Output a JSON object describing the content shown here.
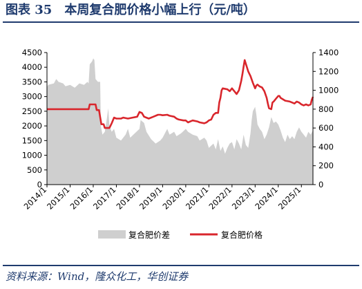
{
  "figure": {
    "title": "图表 35　本周复合肥价格小幅上行（元/吨）",
    "source": "资料来源：Wind，隆众化工，华创证券"
  },
  "chart_data": {
    "type": "area+line",
    "x_tick_labels": [
      "2014/1",
      "2015/1",
      "2016/1",
      "2017/1",
      "2018/1",
      "2019/1",
      "2020/1",
      "2021/1",
      "2022/1",
      "2023/1",
      "2024/1",
      "2025/1"
    ],
    "left_axis": {
      "ticks": [
        0,
        500,
        1000,
        1500,
        2000,
        2500,
        3000,
        3500,
        4000,
        4500
      ],
      "ylim": [
        0,
        4500
      ]
    },
    "right_axis": {
      "ticks": [
        0,
        200,
        400,
        600,
        800,
        1000,
        1200,
        1400
      ],
      "ylim": [
        0,
        1400
      ]
    },
    "xlim": [
      2014.0,
      2025.5
    ],
    "legend": {
      "position": "bottom",
      "entries": [
        "复合肥价差",
        "复合肥价格"
      ]
    },
    "series": [
      {
        "name": "复合肥价差",
        "axis": "left",
        "type": "area",
        "color": "#cfcfcf",
        "points": [
          [
            2014.0,
            3300
          ],
          [
            2014.05,
            3400
          ],
          [
            2014.3,
            3450
          ],
          [
            2014.4,
            3600
          ],
          [
            2014.5,
            3500
          ],
          [
            2014.7,
            3450
          ],
          [
            2014.8,
            3350
          ],
          [
            2015.0,
            3400
          ],
          [
            2015.2,
            3300
          ],
          [
            2015.4,
            3450
          ],
          [
            2015.6,
            3400
          ],
          [
            2015.75,
            3500
          ],
          [
            2015.8,
            3450
          ],
          [
            2015.85,
            4100
          ],
          [
            2015.95,
            4200
          ],
          [
            2016.0,
            4300
          ],
          [
            2016.05,
            4250
          ],
          [
            2016.1,
            3600
          ],
          [
            2016.2,
            3500
          ],
          [
            2016.3,
            3500
          ],
          [
            2016.33,
            2000
          ],
          [
            2016.4,
            1700
          ],
          [
            2016.5,
            1800
          ],
          [
            2016.6,
            2300
          ],
          [
            2016.65,
            2600
          ],
          [
            2016.7,
            2000
          ],
          [
            2016.8,
            1800
          ],
          [
            2016.9,
            1900
          ],
          [
            2017.0,
            1600
          ],
          [
            2017.2,
            1500
          ],
          [
            2017.4,
            1700
          ],
          [
            2017.5,
            1900
          ],
          [
            2017.6,
            1600
          ],
          [
            2017.8,
            1750
          ],
          [
            2018.0,
            1900
          ],
          [
            2018.05,
            2200
          ],
          [
            2018.2,
            2100
          ],
          [
            2018.3,
            1800
          ],
          [
            2018.5,
            1550
          ],
          [
            2018.7,
            1400
          ],
          [
            2018.9,
            1500
          ],
          [
            2019.0,
            1600
          ],
          [
            2019.2,
            1900
          ],
          [
            2019.3,
            1700
          ],
          [
            2019.5,
            1800
          ],
          [
            2019.6,
            1650
          ],
          [
            2019.8,
            1750
          ],
          [
            2020.0,
            1900
          ],
          [
            2020.1,
            1800
          ],
          [
            2020.3,
            1700
          ],
          [
            2020.5,
            1650
          ],
          [
            2020.6,
            1500
          ],
          [
            2020.8,
            1600
          ],
          [
            2020.9,
            1500
          ],
          [
            2021.0,
            1250
          ],
          [
            2021.2,
            1400
          ],
          [
            2021.3,
            1200
          ],
          [
            2021.4,
            1550
          ],
          [
            2021.5,
            1150
          ],
          [
            2021.6,
            1300
          ],
          [
            2021.7,
            1050
          ],
          [
            2021.8,
            1250
          ],
          [
            2021.9,
            1400
          ],
          [
            2022.0,
            1450
          ],
          [
            2022.1,
            1200
          ],
          [
            2022.2,
            1550
          ],
          [
            2022.3,
            1400
          ],
          [
            2022.4,
            1200
          ],
          [
            2022.5,
            1700
          ],
          [
            2022.6,
            1350
          ],
          [
            2022.7,
            1250
          ],
          [
            2022.8,
            1750
          ],
          [
            2022.85,
            2200
          ],
          [
            2022.9,
            2500
          ],
          [
            2023.0,
            2650
          ],
          [
            2023.05,
            2400
          ],
          [
            2023.1,
            2050
          ],
          [
            2023.2,
            1900
          ],
          [
            2023.3,
            1800
          ],
          [
            2023.4,
            1550
          ],
          [
            2023.5,
            1700
          ],
          [
            2023.6,
            1950
          ],
          [
            2023.7,
            2300
          ],
          [
            2023.8,
            2100
          ],
          [
            2023.9,
            2150
          ],
          [
            2024.0,
            2050
          ],
          [
            2024.1,
            1850
          ],
          [
            2024.2,
            1600
          ],
          [
            2024.3,
            1450
          ],
          [
            2024.4,
            1700
          ],
          [
            2024.5,
            1550
          ],
          [
            2024.6,
            1650
          ],
          [
            2024.7,
            1550
          ],
          [
            2024.8,
            1800
          ],
          [
            2024.9,
            1950
          ],
          [
            2025.0,
            1800
          ],
          [
            2025.1,
            1700
          ],
          [
            2025.2,
            1600
          ],
          [
            2025.3,
            1800
          ],
          [
            2025.4,
            1700
          ],
          [
            2025.5,
            1850
          ]
        ]
      },
      {
        "name": "复合肥价格",
        "axis": "right",
        "type": "line",
        "color": "#d9262c",
        "points": [
          [
            2014.0,
            800
          ],
          [
            2015.8,
            800
          ],
          [
            2015.85,
            850
          ],
          [
            2016.1,
            850
          ],
          [
            2016.15,
            790
          ],
          [
            2016.25,
            790
          ],
          [
            2016.35,
            640
          ],
          [
            2016.45,
            640
          ],
          [
            2016.5,
            600
          ],
          [
            2016.7,
            600
          ],
          [
            2016.8,
            650
          ],
          [
            2016.9,
            710
          ],
          [
            2017.0,
            700
          ],
          [
            2017.2,
            700
          ],
          [
            2017.3,
            710
          ],
          [
            2017.5,
            700
          ],
          [
            2017.7,
            710
          ],
          [
            2017.9,
            720
          ],
          [
            2018.0,
            770
          ],
          [
            2018.1,
            760
          ],
          [
            2018.2,
            720
          ],
          [
            2018.4,
            700
          ],
          [
            2018.6,
            720
          ],
          [
            2018.8,
            740
          ],
          [
            2018.9,
            740
          ],
          [
            2019.0,
            735
          ],
          [
            2019.2,
            740
          ],
          [
            2019.3,
            730
          ],
          [
            2019.5,
            720
          ],
          [
            2019.6,
            700
          ],
          [
            2019.7,
            690
          ],
          [
            2019.9,
            680
          ],
          [
            2020.0,
            680
          ],
          [
            2020.1,
            660
          ],
          [
            2020.3,
            680
          ],
          [
            2020.5,
            670
          ],
          [
            2020.6,
            660
          ],
          [
            2020.8,
            650
          ],
          [
            2020.9,
            660
          ],
          [
            2021.0,
            680
          ],
          [
            2021.1,
            690
          ],
          [
            2021.2,
            740
          ],
          [
            2021.3,
            760
          ],
          [
            2021.4,
            760
          ],
          [
            2021.45,
            870
          ],
          [
            2021.5,
            920
          ],
          [
            2021.55,
            1000
          ],
          [
            2021.6,
            1020
          ],
          [
            2021.8,
            1010
          ],
          [
            2021.9,
            990
          ],
          [
            2022.0,
            1020
          ],
          [
            2022.1,
            990
          ],
          [
            2022.2,
            960
          ],
          [
            2022.3,
            1000
          ],
          [
            2022.4,
            1100
          ],
          [
            2022.45,
            1170
          ],
          [
            2022.5,
            1250
          ],
          [
            2022.55,
            1320
          ],
          [
            2022.6,
            1280
          ],
          [
            2022.7,
            1200
          ],
          [
            2022.8,
            1150
          ],
          [
            2022.9,
            1080
          ],
          [
            2023.0,
            1020
          ],
          [
            2023.05,
            1050
          ],
          [
            2023.1,
            1060
          ],
          [
            2023.2,
            1040
          ],
          [
            2023.3,
            1030
          ],
          [
            2023.4,
            990
          ],
          [
            2023.5,
            920
          ],
          [
            2023.55,
            860
          ],
          [
            2023.6,
            810
          ],
          [
            2023.7,
            800
          ],
          [
            2023.75,
            870
          ],
          [
            2023.8,
            880
          ],
          [
            2023.9,
            910
          ],
          [
            2024.0,
            940
          ],
          [
            2024.05,
            940
          ],
          [
            2024.1,
            920
          ],
          [
            2024.3,
            890
          ],
          [
            2024.5,
            880
          ],
          [
            2024.6,
            870
          ],
          [
            2024.7,
            860
          ],
          [
            2024.8,
            880
          ],
          [
            2024.9,
            870
          ],
          [
            2025.0,
            850
          ],
          [
            2025.1,
            840
          ],
          [
            2025.2,
            850
          ],
          [
            2025.3,
            840
          ],
          [
            2025.4,
            850
          ],
          [
            2025.45,
            900
          ],
          [
            2025.5,
            930
          ]
        ]
      }
    ]
  }
}
